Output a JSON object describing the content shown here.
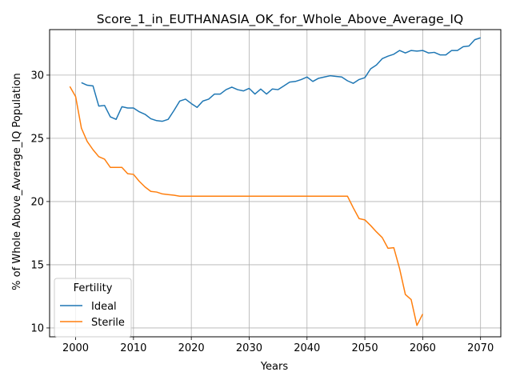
{
  "chart_data": {
    "type": "line",
    "title": "Score_1_in_EUTHANASIA_OK_for_Whole_Above_Average_IQ",
    "xlabel": "Years",
    "ylabel": "% of Whole Above_Average_IQ Population",
    "xlim": [
      1995.5,
      2073.5
    ],
    "ylim": [
      9.3,
      33.6
    ],
    "xticks": [
      2000,
      2010,
      2020,
      2030,
      2040,
      2050,
      2060,
      2070
    ],
    "yticks": [
      10,
      15,
      20,
      25,
      30
    ],
    "grid": true,
    "legend": {
      "title": "Fertility",
      "placement": "lower-left"
    },
    "series": [
      {
        "name": "Ideal",
        "color": "#1f77b4",
        "x": [
          2001,
          2002,
          2003,
          2004,
          2005,
          2006,
          2007,
          2008,
          2009,
          2010,
          2011,
          2012,
          2013,
          2014,
          2015,
          2016,
          2017,
          2018,
          2019,
          2020,
          2021,
          2022,
          2023,
          2024,
          2025,
          2026,
          2027,
          2028,
          2029,
          2030,
          2031,
          2032,
          2033,
          2034,
          2035,
          2036,
          2037,
          2038,
          2039,
          2040,
          2041,
          2042,
          2043,
          2044,
          2045,
          2046,
          2047,
          2048,
          2049,
          2050,
          2051,
          2052,
          2053,
          2054,
          2055,
          2056,
          2057,
          2058,
          2059,
          2060,
          2061,
          2062,
          2063,
          2064,
          2065,
          2066,
          2067,
          2068,
          2069,
          2070
        ],
        "values": [
          29.4,
          29.2,
          29.15,
          27.55,
          27.6,
          26.7,
          26.5,
          27.5,
          27.4,
          27.4,
          27.1,
          26.9,
          26.55,
          26.4,
          26.35,
          26.5,
          27.2,
          27.95,
          28.1,
          27.75,
          27.45,
          27.95,
          28.1,
          28.5,
          28.5,
          28.85,
          29.05,
          28.85,
          28.75,
          28.95,
          28.5,
          28.9,
          28.5,
          28.9,
          28.85,
          29.15,
          29.45,
          29.5,
          29.65,
          29.85,
          29.5,
          29.75,
          29.85,
          29.95,
          29.9,
          29.85,
          29.55,
          29.35,
          29.65,
          29.8,
          30.5,
          30.8,
          31.3,
          31.5,
          31.65,
          31.95,
          31.75,
          31.95,
          31.9,
          31.95,
          31.75,
          31.8,
          31.6,
          31.6,
          31.95,
          31.95,
          32.25,
          32.3,
          32.8,
          32.95
        ]
      },
      {
        "name": "Sterile",
        "color": "#ff7f0e",
        "x": [
          1999,
          2000,
          2001,
          2002,
          2003,
          2004,
          2005,
          2006,
          2007,
          2008,
          2009,
          2010,
          2011,
          2012,
          2013,
          2014,
          2015,
          2016,
          2017,
          2018,
          2019,
          2020,
          2021,
          2022,
          2023,
          2024,
          2025,
          2026,
          2027,
          2028,
          2029,
          2030,
          2031,
          2032,
          2033,
          2034,
          2035,
          2036,
          2037,
          2038,
          2039,
          2040,
          2041,
          2042,
          2043,
          2044,
          2045,
          2046,
          2047,
          2048,
          2049,
          2050,
          2051,
          2052,
          2053,
          2054,
          2055,
          2056,
          2057,
          2058,
          2059,
          2060
        ],
        "values": [
          29.1,
          28.3,
          25.8,
          24.75,
          24.1,
          23.55,
          23.35,
          22.7,
          22.7,
          22.7,
          22.2,
          22.15,
          21.6,
          21.15,
          20.8,
          20.75,
          20.6,
          20.55,
          20.5,
          20.42,
          20.42,
          20.42,
          20.42,
          20.42,
          20.42,
          20.42,
          20.42,
          20.42,
          20.42,
          20.42,
          20.42,
          20.42,
          20.42,
          20.42,
          20.42,
          20.42,
          20.42,
          20.42,
          20.42,
          20.42,
          20.42,
          20.42,
          20.42,
          20.42,
          20.42,
          20.42,
          20.42,
          20.42,
          20.42,
          19.5,
          18.65,
          18.55,
          18.1,
          17.6,
          17.15,
          16.3,
          16.35,
          14.7,
          12.65,
          12.25,
          10.2,
          11.1
        ]
      }
    ]
  }
}
